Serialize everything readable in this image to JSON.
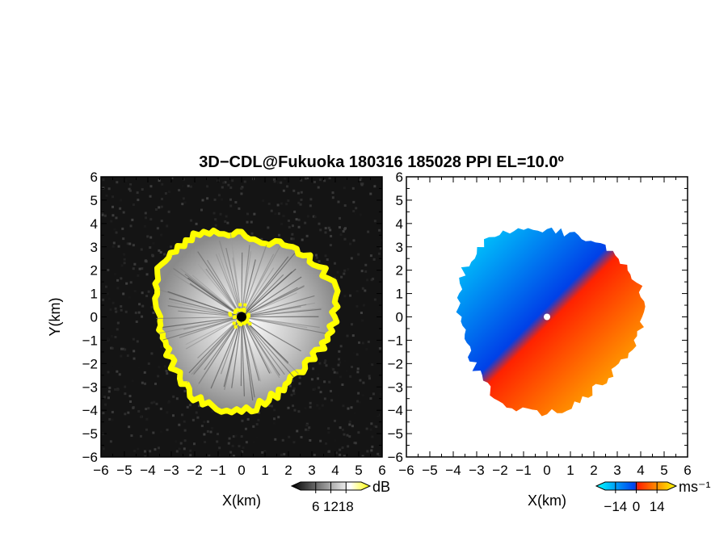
{
  "chart_data": {
    "title": "3D−CDL@Fukuoka 180316 185028 PPI EL=10.0º",
    "panels": [
      {
        "type": "heatmap",
        "quantity": "SNR",
        "xlabel": "X(km)",
        "ylabel": "Y(km)",
        "xlim": [
          -6,
          6
        ],
        "ylim": [
          -6,
          6
        ],
        "xticks": [
          "−6",
          "−5",
          "−4",
          "−3",
          "−2",
          "−1",
          "0",
          "1",
          "2",
          "3",
          "4",
          "5",
          "6"
        ],
        "yticks": [
          "6",
          "5",
          "4",
          "3",
          "2",
          "1",
          "0",
          "−1",
          "−2",
          "−3",
          "−4",
          "−5",
          "−6"
        ],
        "colorbar": {
          "unit": "dB",
          "ticks": [
            "6",
            "12",
            "18"
          ],
          "range": [
            0,
            24
          ],
          "colors": [
            "#000000",
            "#ffffff",
            "#ffff00"
          ]
        },
        "background": "#141414",
        "echo_radius_km": [
          3.2,
          4.3
        ]
      },
      {
        "type": "heatmap",
        "quantity": "Doppler velocity",
        "xlabel": "X(km)",
        "xlim": [
          -6,
          6
        ],
        "ylim": [
          -6,
          6
        ],
        "xticks": [
          "−6",
          "−5",
          "−4",
          "−3",
          "−2",
          "−1",
          "0",
          "1",
          "2",
          "3",
          "4",
          "5",
          "6"
        ],
        "yticks": [
          "6",
          "5",
          "4",
          "3",
          "2",
          "1",
          "0",
          "−1",
          "−2",
          "−3",
          "−4",
          "−5",
          "−6"
        ],
        "colorbar": {
          "unit": "ms⁻¹",
          "ticks": [
            "−14",
            "0",
            "14"
          ],
          "range": [
            -21,
            21
          ],
          "colors": [
            "#00ffff",
            "#0050e0",
            "#ff2000",
            "#ffff00"
          ]
        },
        "background": "#ffffff",
        "echo_radius_km": [
          3.5,
          4.3
        ]
      }
    ]
  }
}
